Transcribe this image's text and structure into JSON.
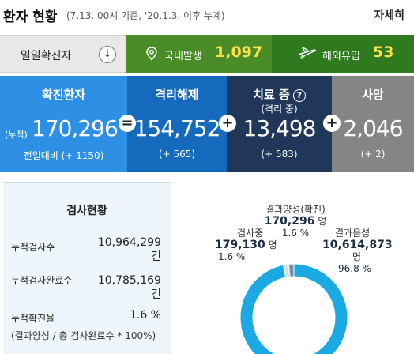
{
  "header": {
    "title": "환자 현황",
    "subtitle": "(7.13. 00시 기준, '20.1.3. 이후 누계)",
    "more_label": "자세히",
    "more_icon": "chevron-right-icon"
  },
  "daily": {
    "label": "일일확진자",
    "toggle_icon": "arrow-down-icon",
    "domestic": {
      "icon": "map-pin-icon",
      "label": "국내발생",
      "value": "1,097"
    },
    "overseas": {
      "icon": "airplane-icon",
      "label": "해외유입",
      "value": "53"
    },
    "colors": {
      "domestic_bg": "#4a8d28",
      "overseas_bg": "#2f7a1f",
      "value": "#ffe14d"
    }
  },
  "stats": {
    "confirmed": {
      "title": "확진환자",
      "prefix": "(누적)",
      "value": "170,296",
      "delta": "전일대비 (+ 1150)",
      "color": "#2e90e5"
    },
    "op1": "=",
    "released": {
      "title": "격리해제",
      "value": "154,752",
      "delta": "(+ 565)",
      "color": "#166abd"
    },
    "op2": "+",
    "treating": {
      "title": "치료 중",
      "subtitle": "(격리 중)",
      "help_icon": "question-circle-icon",
      "value": "13,498",
      "delta": "(+ 583)",
      "color": "#21375a"
    },
    "op3": "+",
    "deaths": {
      "title": "사망",
      "value": "2,046",
      "delta": "(+ 2)",
      "color": "#858585"
    }
  },
  "testing": {
    "title": "검사현황",
    "rows": [
      {
        "label": "누적검사수",
        "value": "10,964,299",
        "unit": "건"
      },
      {
        "label": "누적검사완료수",
        "value": "10,785,169",
        "unit": "건"
      },
      {
        "label": "누적확진율",
        "value": "1.6 %",
        "unit": ""
      }
    ],
    "note": "(결과양성 / 총 검사완료수 * 100%)"
  },
  "chart_data": {
    "type": "pie",
    "title": "",
    "slices": [
      {
        "label": "결과음성",
        "value": 10614873,
        "unit": "명",
        "percent": "96.8 %",
        "color": "#1aa9e3"
      },
      {
        "label": "결과양성(확진)",
        "value": 170296,
        "unit": "명",
        "percent": "1.6 %",
        "color": "#7b8fa6"
      },
      {
        "label": "검사중",
        "value": 179130,
        "unit": "명",
        "percent": "1.6 %",
        "color": "#d9dfe6"
      }
    ],
    "display": {
      "negative": "10,614,873",
      "positive": "170,296",
      "testing": "179,130"
    }
  }
}
